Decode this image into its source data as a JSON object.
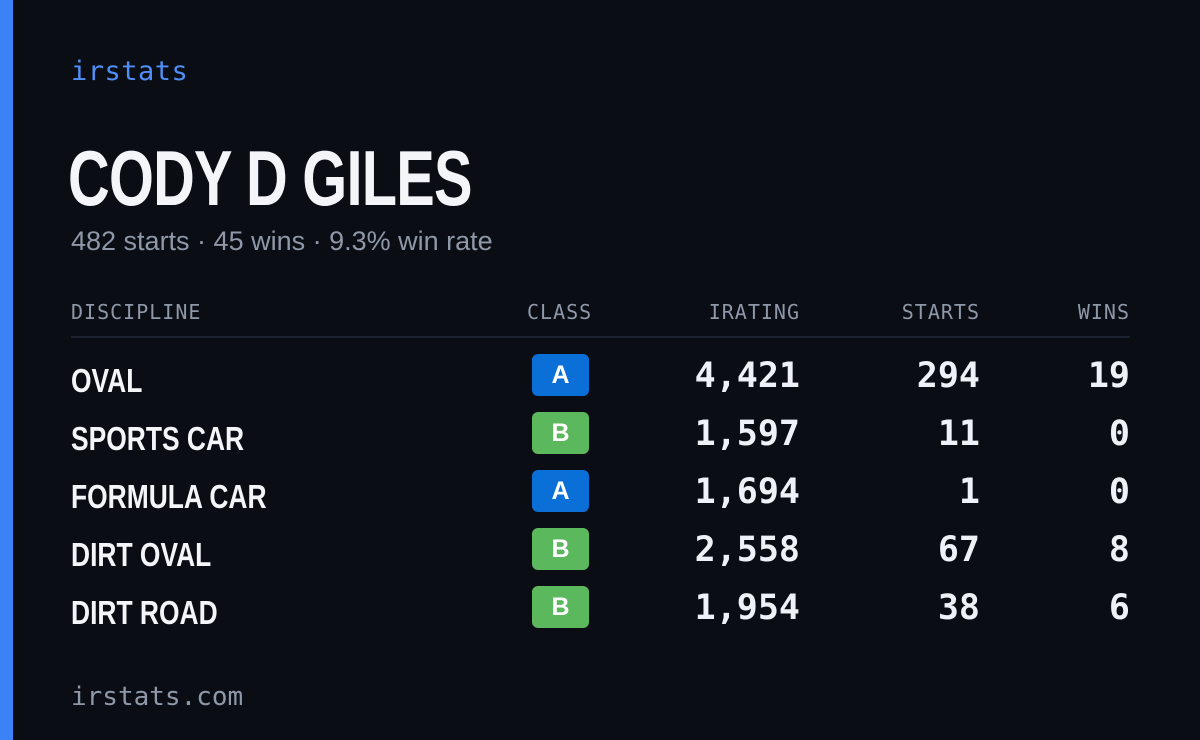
{
  "brand": "irstats",
  "driver": {
    "name": "CODY D GILES",
    "summary": "482 starts · 45 wins · 9.3% win rate"
  },
  "table": {
    "headers": {
      "discipline": "DISCIPLINE",
      "class": "CLASS",
      "irating": "IRATING",
      "starts": "STARTS",
      "wins": "WINS"
    },
    "rows": [
      {
        "discipline": "OVAL",
        "class": "A",
        "irating": "4,421",
        "starts": "294",
        "wins": "19"
      },
      {
        "discipline": "SPORTS CAR",
        "class": "B",
        "irating": "1,597",
        "starts": "11",
        "wins": "0"
      },
      {
        "discipline": "FORMULA CAR",
        "class": "A",
        "irating": "1,694",
        "starts": "1",
        "wins": "0"
      },
      {
        "discipline": "DIRT OVAL",
        "class": "B",
        "irating": "2,558",
        "starts": "67",
        "wins": "8"
      },
      {
        "discipline": "DIRT ROAD",
        "class": "B",
        "irating": "1,954",
        "starts": "38",
        "wins": "6"
      }
    ]
  },
  "class_colors": {
    "A": "#0b6fd8",
    "B": "#5cb85c"
  },
  "footer": "irstats.com",
  "colors": {
    "accent": "#3b82f6",
    "background": "#0a0d14"
  }
}
